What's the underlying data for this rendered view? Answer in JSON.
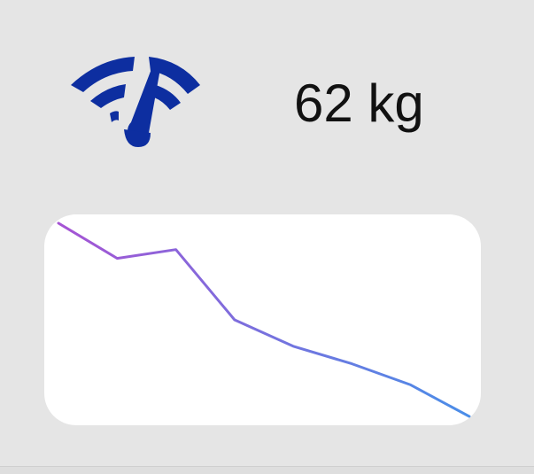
{
  "widget": {
    "icon": "scale-gauge-icon",
    "weight": "62 kg",
    "colors": {
      "background": "#e5e5e5",
      "icon": "#0d2ea0",
      "card": "#ffffff",
      "line_start": "#a654d4",
      "line_end": "#4a8ee8"
    }
  },
  "chart_data": {
    "type": "line",
    "series": [
      {
        "values": [
          68.5,
          66.5,
          67.0,
          63.0,
          61.5,
          60.5,
          59.3,
          57.5
        ]
      }
    ],
    "ylim": [
      57,
      69
    ],
    "grid": false,
    "legend": "none"
  }
}
